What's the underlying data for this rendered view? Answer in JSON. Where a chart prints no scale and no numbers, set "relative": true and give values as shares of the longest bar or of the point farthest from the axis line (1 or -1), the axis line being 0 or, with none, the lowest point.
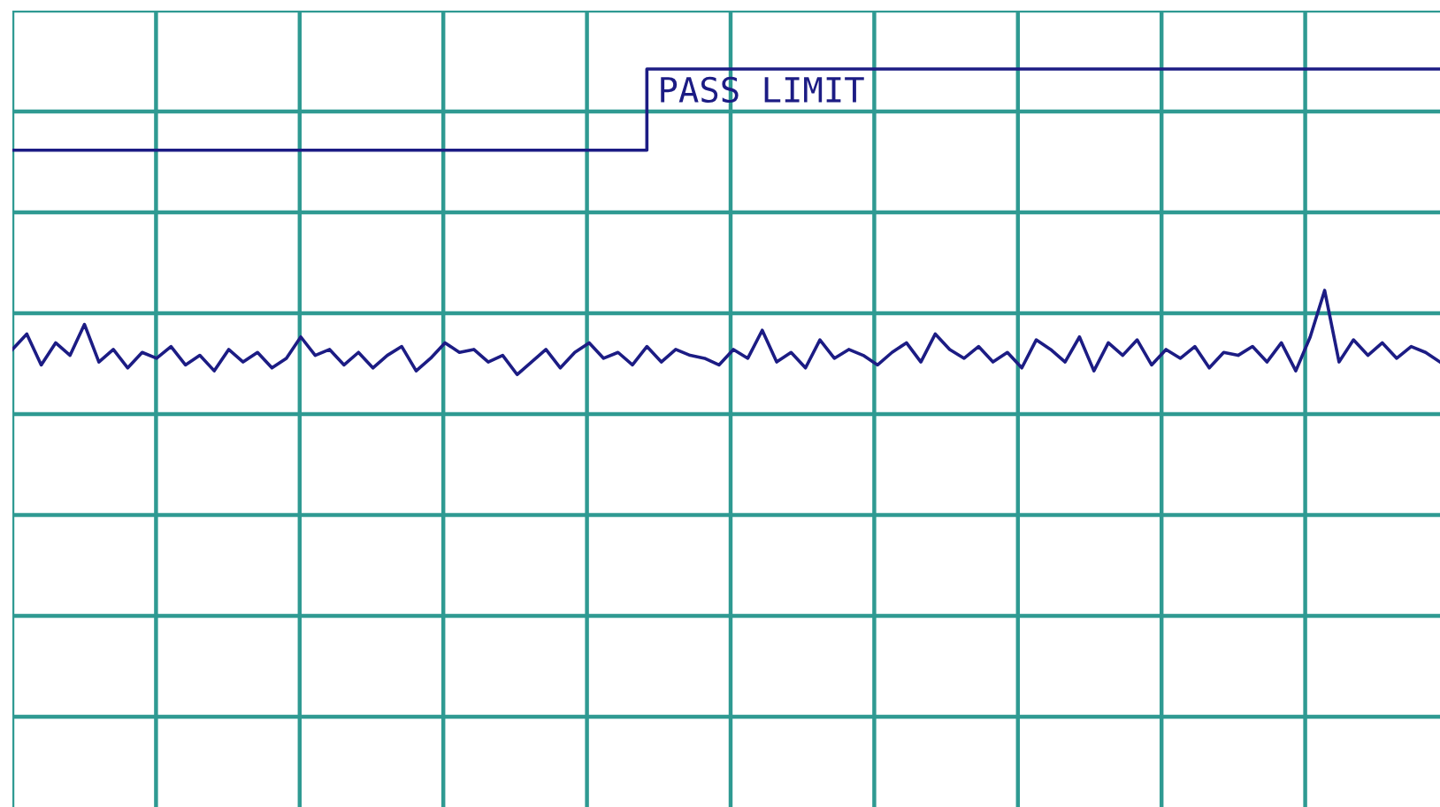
{
  "chart_data": {
    "type": "line",
    "relative": true,
    "grid": true,
    "legend": false,
    "marker": "none",
    "line_style": "solid",
    "categories": [
      null,
      null,
      null,
      null,
      null,
      null,
      null,
      null,
      null,
      null,
      null,
      null,
      null,
      null,
      null,
      null,
      null,
      null,
      null,
      null,
      null,
      null,
      null,
      null,
      null,
      null,
      null,
      null,
      null,
      null,
      null,
      null,
      null,
      null,
      null,
      null,
      null,
      null,
      null,
      null,
      null,
      null,
      null,
      null,
      null,
      null,
      null,
      null,
      null,
      null,
      null,
      null,
      null,
      null,
      null,
      null,
      null,
      null,
      null,
      null,
      null,
      null,
      null,
      null,
      null,
      null,
      null,
      null,
      null,
      null,
      null,
      null,
      null,
      null,
      null,
      null,
      null,
      null,
      null,
      null,
      null,
      null,
      null,
      null,
      null,
      null,
      null,
      null,
      null,
      null,
      null,
      null,
      null,
      null,
      null,
      null,
      null,
      null,
      null,
      null
    ],
    "series": [
      {
        "color": "#1c1c84",
        "values": [
          0.62,
          0.641,
          0.599,
          0.629,
          0.612,
          0.654,
          0.603,
          0.62,
          0.595,
          0.616,
          0.608,
          0.624,
          0.599,
          0.612,
          0.591,
          0.62,
          0.603,
          0.616,
          0.595,
          0.608,
          0.637,
          0.612,
          0.62,
          0.599,
          0.616,
          0.595,
          0.612,
          0.624,
          0.591,
          0.608,
          0.629,
          0.616,
          0.62,
          0.603,
          0.612,
          0.586,
          0.603,
          0.62,
          0.595,
          0.616,
          0.629,
          0.608,
          0.616,
          0.599,
          0.624,
          0.603,
          0.62,
          0.612,
          0.608,
          0.599,
          0.62,
          0.608,
          0.646,
          0.603,
          0.616,
          0.595,
          0.633,
          0.608,
          0.62,
          0.612,
          0.599,
          0.616,
          0.629,
          0.603,
          0.641,
          0.62,
          0.608,
          0.624,
          0.603,
          0.616,
          0.595,
          0.633,
          0.62,
          0.603,
          0.637,
          0.591,
          0.629,
          0.612,
          0.633,
          0.599,
          0.62,
          0.608,
          0.624,
          0.595,
          0.616,
          0.612,
          0.624,
          0.603,
          0.629,
          0.591,
          0.637,
          0.7,
          0.603,
          0.633,
          0.612,
          0.629,
          0.608,
          0.624,
          0.616,
          0.603
        ]
      },
      {
        "type": "step",
        "color": "#1c1c84",
        "values": [
          0.89,
          0.89,
          0.89,
          0.89,
          0.89,
          0.89,
          0.89,
          0.89,
          0.89,
          0.89,
          0.89,
          0.89,
          0.89,
          0.89,
          0.89,
          0.89,
          0.89,
          0.89,
          0.89,
          0.89,
          0.89,
          0.89,
          0.89,
          0.89,
          0.89,
          0.89,
          0.89,
          0.89,
          0.89,
          0.89,
          0.89,
          0.89,
          0.89,
          0.89,
          0.89,
          0.89,
          0.89,
          0.89,
          0.89,
          0.89,
          0.89,
          0.89,
          0.89,
          0.89,
          1,
          1,
          1,
          1,
          1,
          1,
          1,
          1,
          1,
          1,
          1,
          1,
          1,
          1,
          1,
          1,
          1,
          1,
          1,
          1,
          1,
          1,
          1,
          1,
          1,
          1,
          1,
          1,
          1,
          1,
          1,
          1,
          1,
          1,
          1,
          1,
          1,
          1,
          1,
          1,
          1,
          1,
          1,
          1,
          1,
          1,
          1,
          1,
          1,
          1,
          1,
          1,
          1,
          1,
          1,
          1
        ]
      }
    ],
    "annotations": [
      "PASS LIMIT"
    ]
  }
}
